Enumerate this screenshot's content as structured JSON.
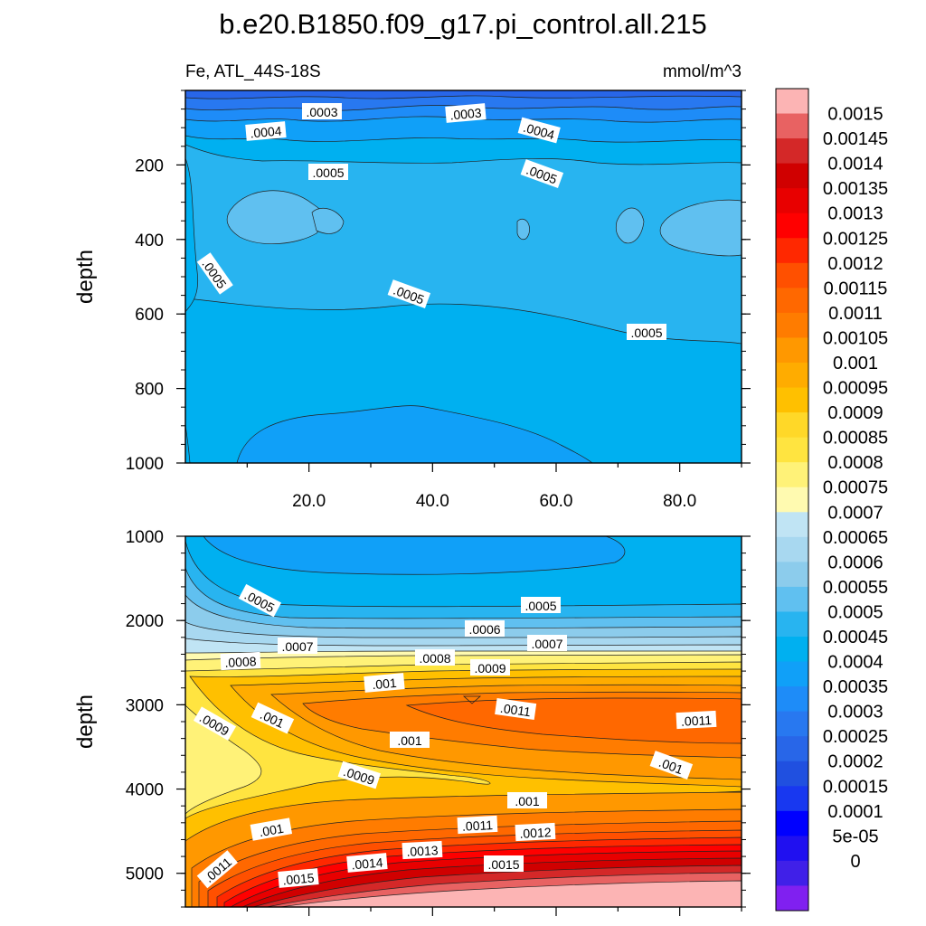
{
  "chart_data": {
    "type": "heatmap",
    "title": "b.e20.B1850.f09_g17.pi_control.all.215",
    "variable": "Fe, ATL_44S-18S",
    "units": "mmol/m^3",
    "colorbar": {
      "labels": [
        "0.0015",
        "0.00145",
        "0.0014",
        "0.00135",
        "0.0013",
        "0.00125",
        "0.0012",
        "0.00115",
        "0.0011",
        "0.00105",
        "0.001",
        "0.00095",
        "0.0009",
        "0.00085",
        "0.0008",
        "0.00075",
        "0.0007",
        "0.00065",
        "0.0006",
        "0.00055",
        "0.0005",
        "0.00045",
        "0.0004",
        "0.00035",
        "0.0003",
        "0.00025",
        "0.0002",
        "0.00015",
        "0.0001",
        "5e-05",
        "0"
      ],
      "colors": [
        "#fcb4b4",
        "#e86262",
        "#d42828",
        "#d00000",
        "#e80000",
        "#ff0000",
        "#ff2800",
        "#ff5000",
        "#ff6800",
        "#ff7c00",
        "#ff9800",
        "#ffac00",
        "#ffc000",
        "#ffd828",
        "#ffe440",
        "#fff278",
        "#fffab0",
        "#c0e4f4",
        "#a8d8f0",
        "#8cccec",
        "#60c0f0",
        "#28b4f0",
        "#00b0f0",
        "#10a0f8",
        "#1e8cf8",
        "#2878f0",
        "#2866e8",
        "#2050e0",
        "#1838f0",
        "#0000ff",
        "#2010f0",
        "#4020e8",
        "#8020f0"
      ]
    },
    "panels": [
      {
        "name": "upper",
        "ylabel": "depth",
        "ylim": [
          0,
          1000
        ],
        "yticks": [
          "200",
          "400",
          "600",
          "800",
          "1000"
        ],
        "xlim": [
          0,
          90
        ],
        "xticks": [
          "20.0",
          "40.0",
          "60.0",
          "80.0"
        ],
        "contour_labels": [
          ".0003",
          ".0003",
          ".0004",
          ".0004",
          ".0005",
          ".0005",
          ".0005",
          ".0005",
          ".0005"
        ]
      },
      {
        "name": "lower",
        "ylabel": "depth",
        "ylim": [
          1000,
          5400
        ],
        "yticks": [
          "1000",
          "2000",
          "3000",
          "4000",
          "5000"
        ],
        "xlim": [
          0,
          90
        ],
        "contour_labels": [
          ".0005",
          ".0005",
          ".0006",
          ".0007",
          ".0007",
          ".0008",
          ".0008",
          ".0009",
          ".001",
          ".001",
          ".0009",
          ".001",
          ".0011",
          ".0011",
          ".0009",
          ".001",
          ".001",
          ".001",
          ".0011",
          ".0012",
          ".0013",
          ".0014",
          ".0015",
          ".0011",
          ".0015"
        ]
      }
    ]
  }
}
